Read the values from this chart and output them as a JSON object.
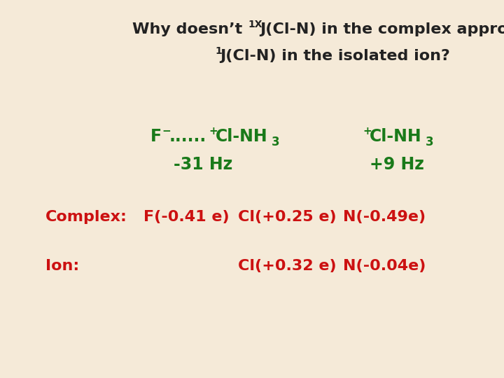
{
  "bg_color": "#f5ead8",
  "green_color": "#1a7a1a",
  "red_color": "#cc1111",
  "black_color": "#222222",
  "title1_pre": "Why doesn’t ",
  "title1_sup": "1X",
  "title1_post": "J(Cl-N) in the complex approach",
  "title2_sup": "1",
  "title2_post": "J(Cl-N) in the isolated ion?",
  "formula_left_pre": "F",
  "formula_left_sup": "-",
  "formula_left_dots": "......",
  "formula_left_sup2": "+",
  "formula_left_post": "Cl-NH",
  "formula_left_sub": "3",
  "formula_right_sup": "+",
  "formula_right_post": "Cl-NH",
  "formula_right_sub": "3",
  "freq_left": "-31 Hz",
  "freq_right": "+9 Hz",
  "complex_label": "Complex:",
  "complex_f": "F(-0.41e)",
  "complex_cl": "Cl(+0.25e)",
  "complex_n": "N(-0.49e)",
  "ion_label": "Ion:",
  "ion_cl": "Cl(+0.32e)",
  "ion_n": "N(-0.04e)"
}
